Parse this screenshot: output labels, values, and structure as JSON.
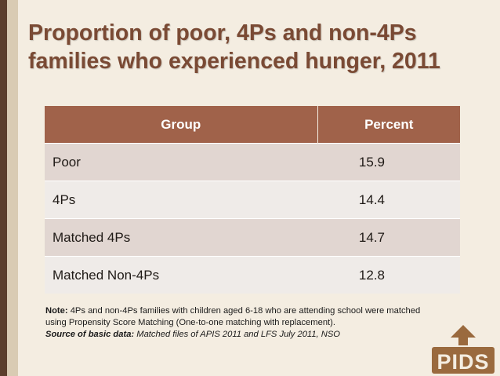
{
  "title": {
    "line1": "Proportion of poor, 4Ps and non-4Ps",
    "line2": "families who experienced hunger, 2011"
  },
  "table": {
    "headers": [
      "Group",
      "Percent"
    ],
    "rows": [
      {
        "group": "Poor",
        "percent": "15.9"
      },
      {
        "group": "4Ps",
        "percent": "14.4"
      },
      {
        "group": "Matched 4Ps",
        "percent": "14.7"
      },
      {
        "group": "Matched Non-4Ps",
        "percent": "12.8"
      }
    ]
  },
  "note": {
    "label": "Note:",
    "text_line1": " 4Ps and non-4Ps families with children aged 6-18 who are attending school were matched",
    "text_line2": "using Propensity Score Matching (One-to-one matching with replacement).",
    "source_label": "Source of basic data:",
    "source_text": " Matched files of APIS 2011 and LFS July 2011, NSO"
  },
  "logo": {
    "text": "PIDS"
  },
  "colors": {
    "title": "#7a4a34",
    "header_bg": "#a0624a",
    "row_odd": "#e1d6d1",
    "row_even": "#efebe8",
    "background": "#f4ede1",
    "logo": "#9a6a3e"
  }
}
